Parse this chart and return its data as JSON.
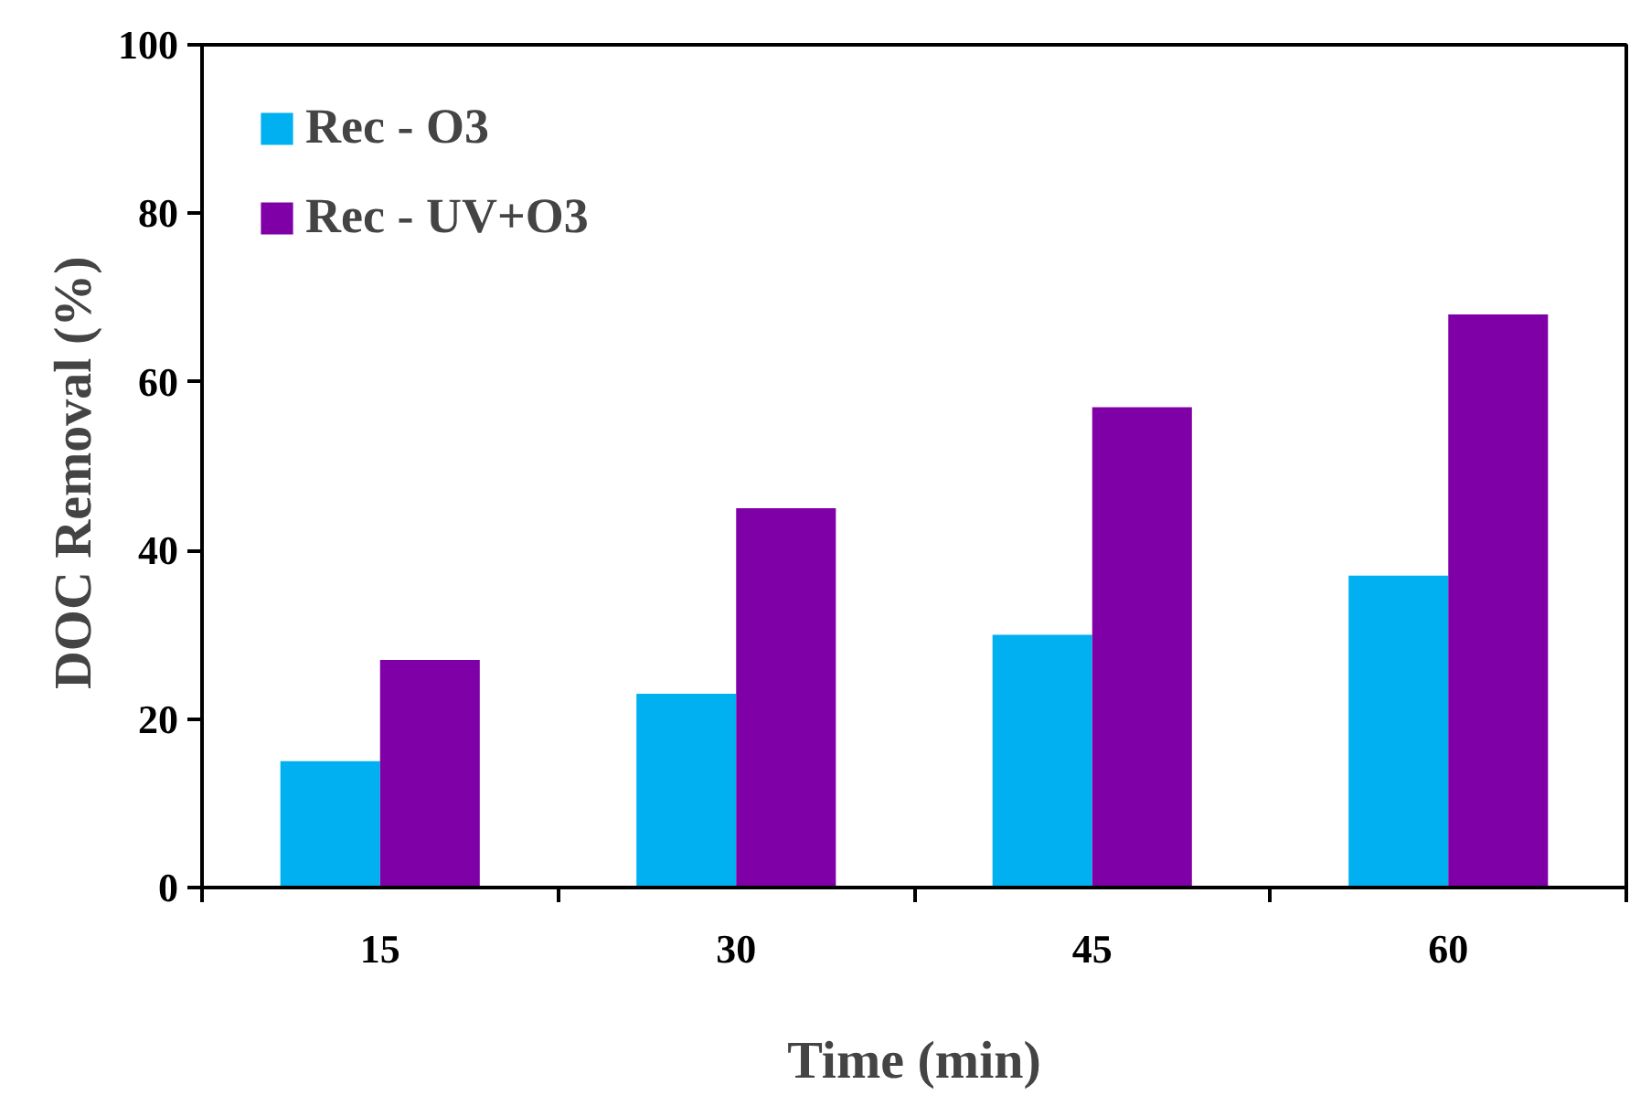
{
  "chart_data": {
    "type": "bar",
    "xlabel": "Time (min)",
    "ylabel": "DOC  Removal (%)",
    "categories": [
      "15",
      "30",
      "45",
      "60"
    ],
    "series": [
      {
        "name": "Rec - O3",
        "color": "#00b0f0",
        "values": [
          15,
          23,
          30,
          37
        ]
      },
      {
        "name": "Rec - UV+O3",
        "color": "#8000a8",
        "values": [
          27,
          45,
          57,
          68
        ]
      }
    ],
    "ylim": [
      0,
      100
    ],
    "yticks": [
      0,
      20,
      40,
      60,
      80,
      100
    ],
    "grid": false,
    "legend": "top left"
  }
}
